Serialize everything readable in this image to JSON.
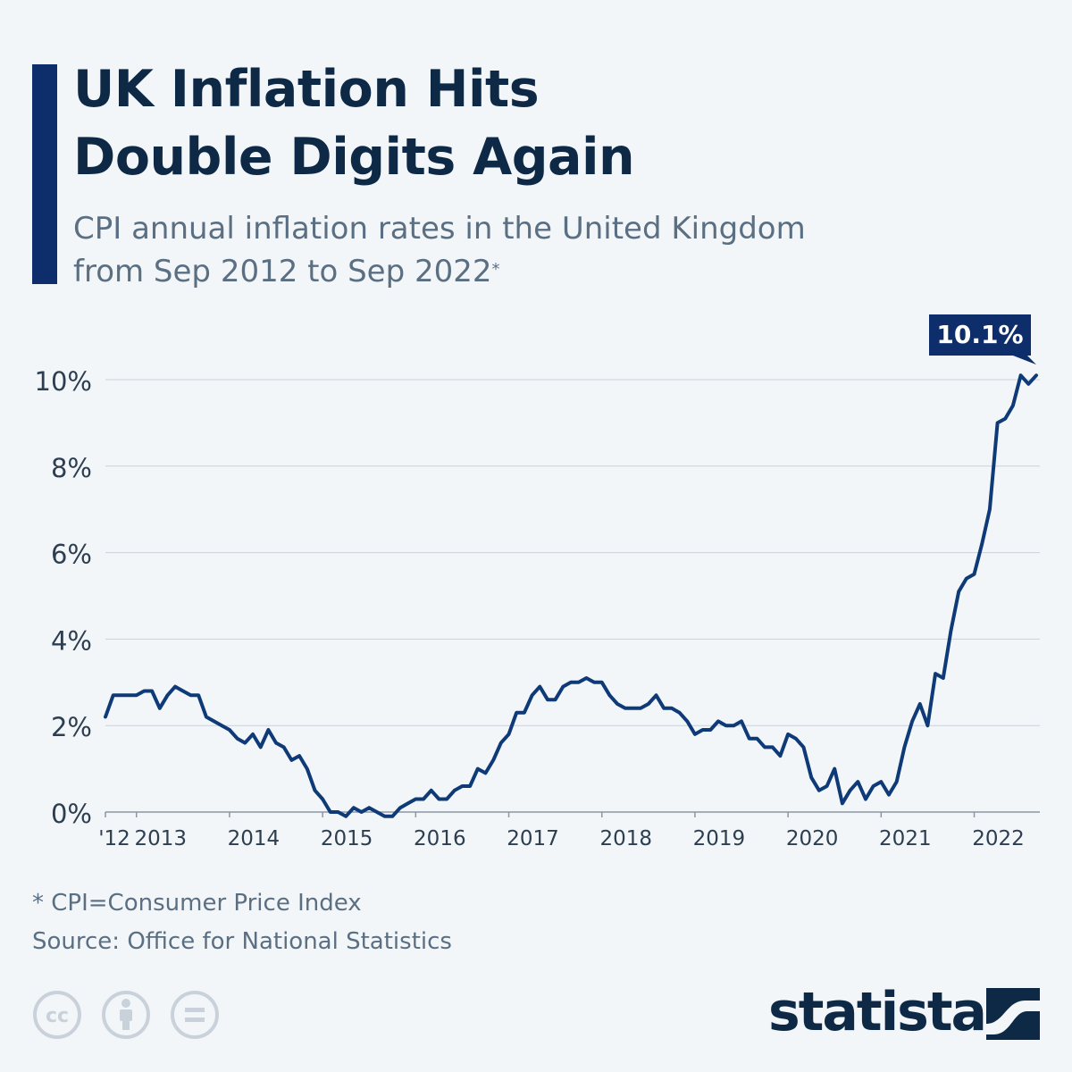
{
  "header": {
    "title_line1": "UK Inflation Hits",
    "title_line2": "Double Digits Again",
    "subtitle_line1": "CPI annual inflation rates in the United Kingdom",
    "subtitle_line2": "from Sep 2012 to Sep 2022",
    "subtitle_marker": "*"
  },
  "footer": {
    "footnote": "* CPI=Consumer Price Index",
    "source": "Source: Office for National Statistics",
    "brand": "statista",
    "license_icons": [
      "cc-icon",
      "attribution-icon",
      "no-derivatives-icon"
    ]
  },
  "colors": {
    "background": "#f3f6f9",
    "accent": "#0d2d6b",
    "line": "#0e3a78",
    "title": "#0e2946",
    "text_muted": "#5b6f83",
    "grid": "#c9d1da"
  },
  "chart_data": {
    "type": "line",
    "x_tick_labels": [
      "'12",
      "2013",
      "2014",
      "2015",
      "2016",
      "2017",
      "2018",
      "2019",
      "2020",
      "2021",
      "2022"
    ],
    "y_tick_labels": [
      "0%",
      "2%",
      "4%",
      "6%",
      "8%",
      "10%"
    ],
    "ylim": [
      0,
      10
    ],
    "grid": true,
    "callout": "10.1%",
    "series": [
      {
        "start": "2012-09",
        "end": "2022-09",
        "values": [
          2.2,
          2.7,
          2.7,
          2.7,
          2.7,
          2.8,
          2.8,
          2.4,
          2.7,
          2.9,
          2.8,
          2.7,
          2.7,
          2.2,
          2.1,
          2.0,
          1.9,
          1.7,
          1.6,
          1.8,
          1.5,
          1.9,
          1.6,
          1.5,
          1.2,
          1.3,
          1.0,
          0.5,
          0.3,
          0.0,
          0.0,
          -0.1,
          0.1,
          0.0,
          0.1,
          0.0,
          -0.1,
          -0.1,
          0.1,
          0.2,
          0.3,
          0.3,
          0.5,
          0.3,
          0.3,
          0.5,
          0.6,
          0.6,
          1.0,
          0.9,
          1.2,
          1.6,
          1.8,
          2.3,
          2.3,
          2.7,
          2.9,
          2.6,
          2.6,
          2.9,
          3.0,
          3.0,
          3.1,
          3.0,
          3.0,
          2.7,
          2.5,
          2.4,
          2.4,
          2.4,
          2.5,
          2.7,
          2.4,
          2.4,
          2.3,
          2.1,
          1.8,
          1.9,
          1.9,
          2.1,
          2.0,
          2.0,
          2.1,
          1.7,
          1.7,
          1.5,
          1.5,
          1.3,
          1.8,
          1.7,
          1.5,
          0.8,
          0.5,
          0.6,
          1.0,
          0.2,
          0.5,
          0.7,
          0.3,
          0.6,
          0.7,
          0.4,
          0.7,
          1.5,
          2.1,
          2.5,
          2.0,
          3.2,
          3.1,
          4.2,
          5.1,
          5.4,
          5.5,
          6.2,
          7.0,
          9.0,
          9.1,
          9.4,
          10.1,
          9.9,
          10.1
        ]
      }
    ]
  }
}
